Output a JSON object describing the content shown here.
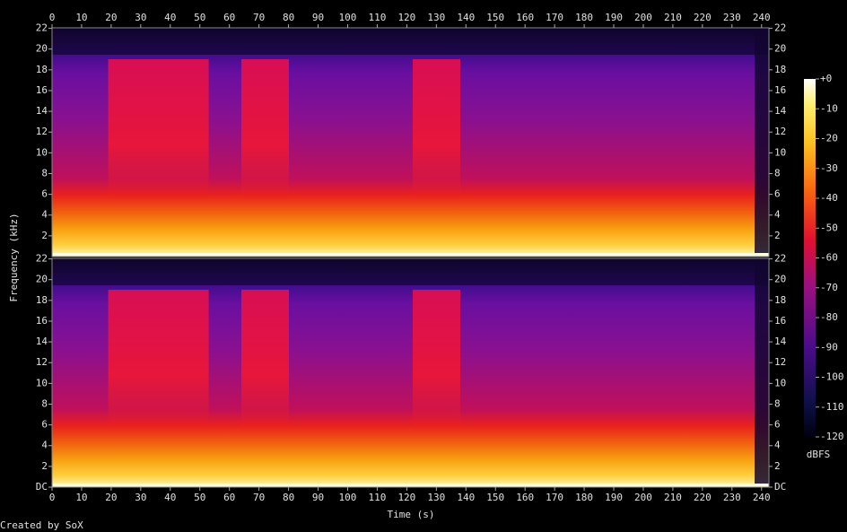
{
  "chart_data": [
    {
      "type": "spectrogram",
      "xlim": [
        0,
        242.5
      ],
      "xticks": [
        0,
        10,
        20,
        30,
        40,
        50,
        60,
        70,
        80,
        90,
        100,
        110,
        120,
        130,
        140,
        150,
        160,
        170,
        180,
        190,
        200,
        210,
        220,
        230,
        240
      ],
      "ylim": [
        0,
        22.05
      ],
      "yticks": [
        2,
        4,
        6,
        8,
        10,
        12,
        14,
        16,
        18,
        20,
        22
      ]
    },
    {
      "type": "spectrogram",
      "xlabel": "Time (s)",
      "xlim": [
        0,
        242.5
      ],
      "xticks": [
        0,
        10,
        20,
        30,
        40,
        50,
        60,
        70,
        80,
        90,
        100,
        110,
        120,
        130,
        140,
        150,
        160,
        170,
        180,
        190,
        200,
        210,
        220,
        230,
        240
      ],
      "ylim": [
        0,
        22.05
      ],
      "yticks": [
        {
          "value": 0,
          "label": "DC"
        },
        2,
        4,
        6,
        8,
        10,
        12,
        14,
        16,
        18,
        20,
        22
      ]
    }
  ],
  "ylabel": "Frequency (kHz)",
  "colorbar": {
    "label": "dBFS",
    "zlim": [
      -120,
      0
    ],
    "zticks": [
      {
        "value": 0,
        "label": "+0"
      },
      -10,
      -20,
      -30,
      -40,
      -50,
      -60,
      -70,
      -80,
      -90,
      -100,
      -110,
      -120
    ]
  },
  "footer": "Created by SoX"
}
